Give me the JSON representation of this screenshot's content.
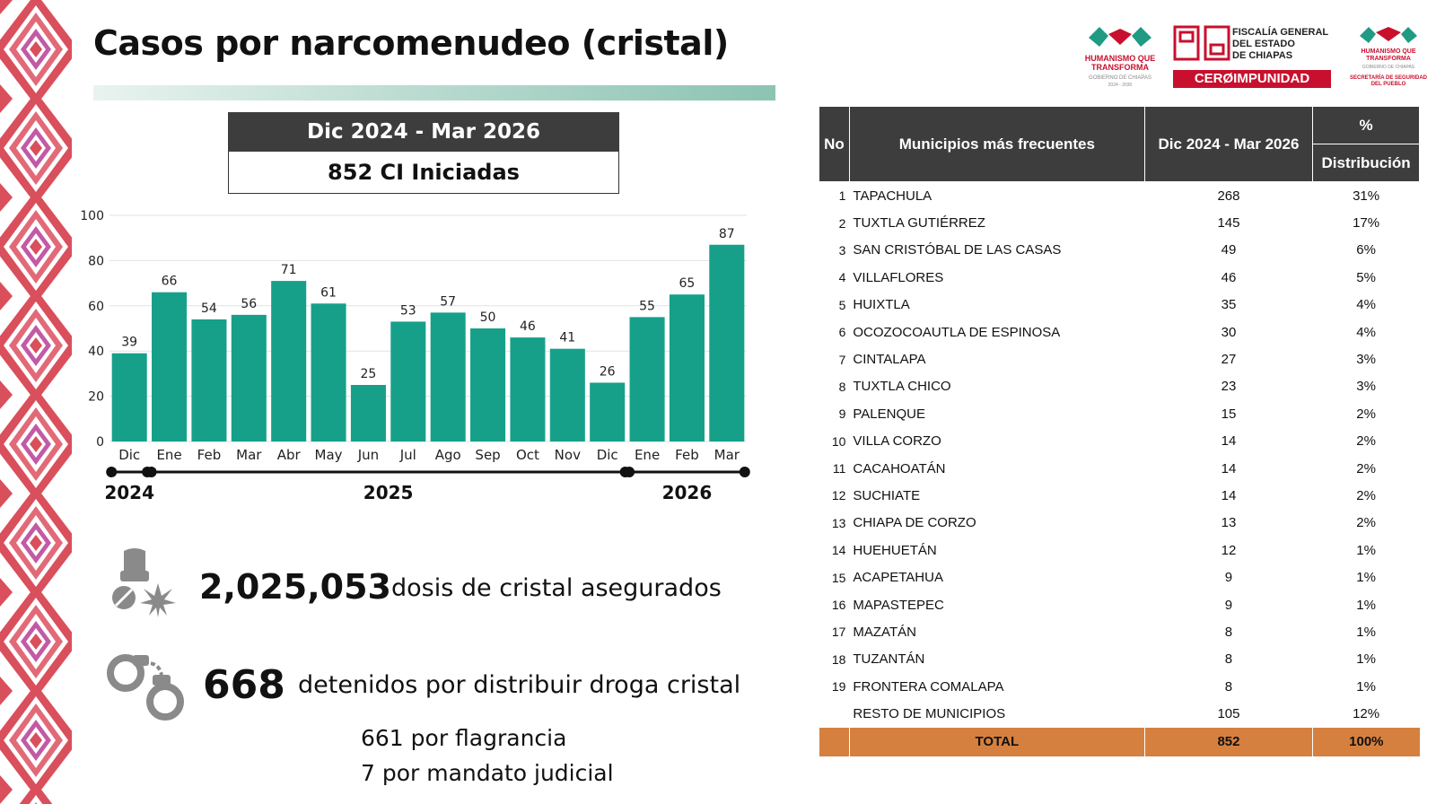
{
  "header": {
    "title": "Casos por narcomenudeo (cristal)"
  },
  "logos": {
    "gov_line1": "HUMANISMO QUE",
    "gov_line2": "TRANSFORMA",
    "gov_sub": "GOBIERNO DE CHIAPAS",
    "gov_years": "2024 - 2030",
    "fiscalia_line1": "FISCALÍA GENERAL",
    "fiscalia_line2": "DEL ESTADO",
    "fiscalia_line3": "DE CHIAPAS",
    "cero_impunidad": "CERØIMPUNIDAD",
    "ssp_line1": "HUMANISMO QUE",
    "ssp_line2": "TRANSFORMA",
    "ssp_sub": "GOBIERNO DE CHIAPAS",
    "ssp_name1": "SECRETARÍA DE SEGURIDAD",
    "ssp_name2": "DEL PUEBLO",
    "colors": {
      "green": "#1f9a83",
      "red": "#c8102e"
    }
  },
  "period_box": {
    "period": "Dic 2024 - Mar 2026",
    "ci_text": "852 CI Iniciadas"
  },
  "chart_data": {
    "type": "bar",
    "categories": [
      "Dic",
      "Ene",
      "Feb",
      "Mar",
      "Abr",
      "May",
      "Jun",
      "Jul",
      "Ago",
      "Sep",
      "Oct",
      "Nov",
      "Dic",
      "Ene",
      "Feb",
      "Mar"
    ],
    "values": [
      39,
      66,
      54,
      56,
      71,
      61,
      25,
      53,
      57,
      50,
      46,
      41,
      26,
      55,
      65,
      87
    ],
    "year_groups": [
      {
        "label": "2024",
        "from": 0,
        "to": 0
      },
      {
        "label": "2025",
        "from": 1,
        "to": 12
      },
      {
        "label": "2026",
        "from": 13,
        "to": 15
      }
    ],
    "ylim": [
      0,
      100
    ],
    "yticks": [
      0,
      20,
      40,
      60,
      80,
      100
    ],
    "grid": true,
    "title": "",
    "xlabel": "",
    "ylabel": "",
    "bar_color": "#16a08a"
  },
  "stats": {
    "doses_value": "2,025,053",
    "doses_label": "dosis de cristal asegurados",
    "doses_icon": "drugs-icon",
    "arrests_value": "668",
    "arrests_label": "detenidos por distribuir droga cristal",
    "arrests_icon": "handcuffs-icon",
    "flagrancia": "661 por flagrancia",
    "mandato": "7 por mandato judicial"
  },
  "table": {
    "headers": {
      "no": "No",
      "municipio": "Municipios más frecuentes",
      "period": "Dic 2024 - Mar 2026",
      "pct": "%",
      "dist": "Distribución"
    },
    "rows": [
      {
        "no": "1",
        "name": "TAPACHULA",
        "value": "268",
        "pct": "31%"
      },
      {
        "no": "2",
        "name": "TUXTLA GUTIÉRREZ",
        "value": "145",
        "pct": "17%"
      },
      {
        "no": "3",
        "name": "SAN CRISTÓBAL DE LAS CASAS",
        "value": "49",
        "pct": "6%"
      },
      {
        "no": "4",
        "name": "VILLAFLORES",
        "value": "46",
        "pct": "5%"
      },
      {
        "no": "5",
        "name": "HUIXTLA",
        "value": "35",
        "pct": "4%"
      },
      {
        "no": "6",
        "name": "OCOZOCOAUTLA DE ESPINOSA",
        "value": "30",
        "pct": "4%"
      },
      {
        "no": "7",
        "name": "CINTALAPA",
        "value": "27",
        "pct": "3%"
      },
      {
        "no": "8",
        "name": "TUXTLA CHICO",
        "value": "23",
        "pct": "3%"
      },
      {
        "no": "9",
        "name": "PALENQUE",
        "value": "15",
        "pct": "2%"
      },
      {
        "no": "10",
        "name": "VILLA CORZO",
        "value": "14",
        "pct": "2%"
      },
      {
        "no": "11",
        "name": "CACAHOATÁN",
        "value": "14",
        "pct": "2%"
      },
      {
        "no": "12",
        "name": "SUCHIATE",
        "value": "14",
        "pct": "2%"
      },
      {
        "no": "13",
        "name": "CHIAPA DE CORZO",
        "value": "13",
        "pct": "2%"
      },
      {
        "no": "14",
        "name": "HUEHUETÁN",
        "value": "12",
        "pct": "1%"
      },
      {
        "no": "15",
        "name": "ACAPETAHUA",
        "value": "9",
        "pct": "1%"
      },
      {
        "no": "16",
        "name": "MAPASTEPEC",
        "value": "9",
        "pct": "1%"
      },
      {
        "no": "17",
        "name": "MAZATÁN",
        "value": "8",
        "pct": "1%"
      },
      {
        "no": "18",
        "name": "TUZANTÁN",
        "value": "8",
        "pct": "1%"
      },
      {
        "no": "19",
        "name": "FRONTERA COMALAPA",
        "value": "8",
        "pct": "1%"
      },
      {
        "no": "",
        "name": "RESTO DE MUNICIPIOS",
        "value": "105",
        "pct": "12%"
      }
    ],
    "total": {
      "label": "TOTAL",
      "value": "852",
      "pct": "100%"
    },
    "total_color": "#d6803f",
    "header_color": "#3d3d3d"
  },
  "decoration": {
    "border_colors": [
      "#d94f5c",
      "#e07a8c",
      "#b85aa5",
      "#ffffff"
    ]
  }
}
